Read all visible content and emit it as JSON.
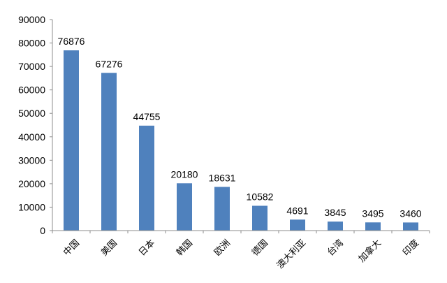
{
  "chart_data": {
    "type": "bar",
    "title": "",
    "xlabel": "",
    "ylabel": "",
    "categories": [
      "中国",
      "美国",
      "日本",
      "韩国",
      "欧洲",
      "德国",
      "澳大利亚",
      "台湾",
      "加拿大",
      "印度"
    ],
    "values": [
      76876,
      67276,
      44755,
      20180,
      18631,
      10582,
      4691,
      3845,
      3495,
      3460
    ],
    "data_labels": [
      "76876",
      "67276",
      "44755",
      "20180",
      "18631",
      "10582",
      "4691",
      "3845",
      "3495",
      "3460"
    ],
    "ylim": [
      0,
      90000
    ],
    "yticks": [
      0,
      10000,
      20000,
      30000,
      40000,
      50000,
      60000,
      70000,
      80000,
      90000
    ],
    "ytick_labels": [
      "0",
      "10000",
      "20000",
      "30000",
      "40000",
      "50000",
      "60000",
      "70000",
      "80000",
      "90000"
    ],
    "grid": false,
    "legend": "none",
    "colors": {
      "bar": "#4f81bd",
      "axis": "#8c8c8c",
      "text": "#000000"
    }
  }
}
